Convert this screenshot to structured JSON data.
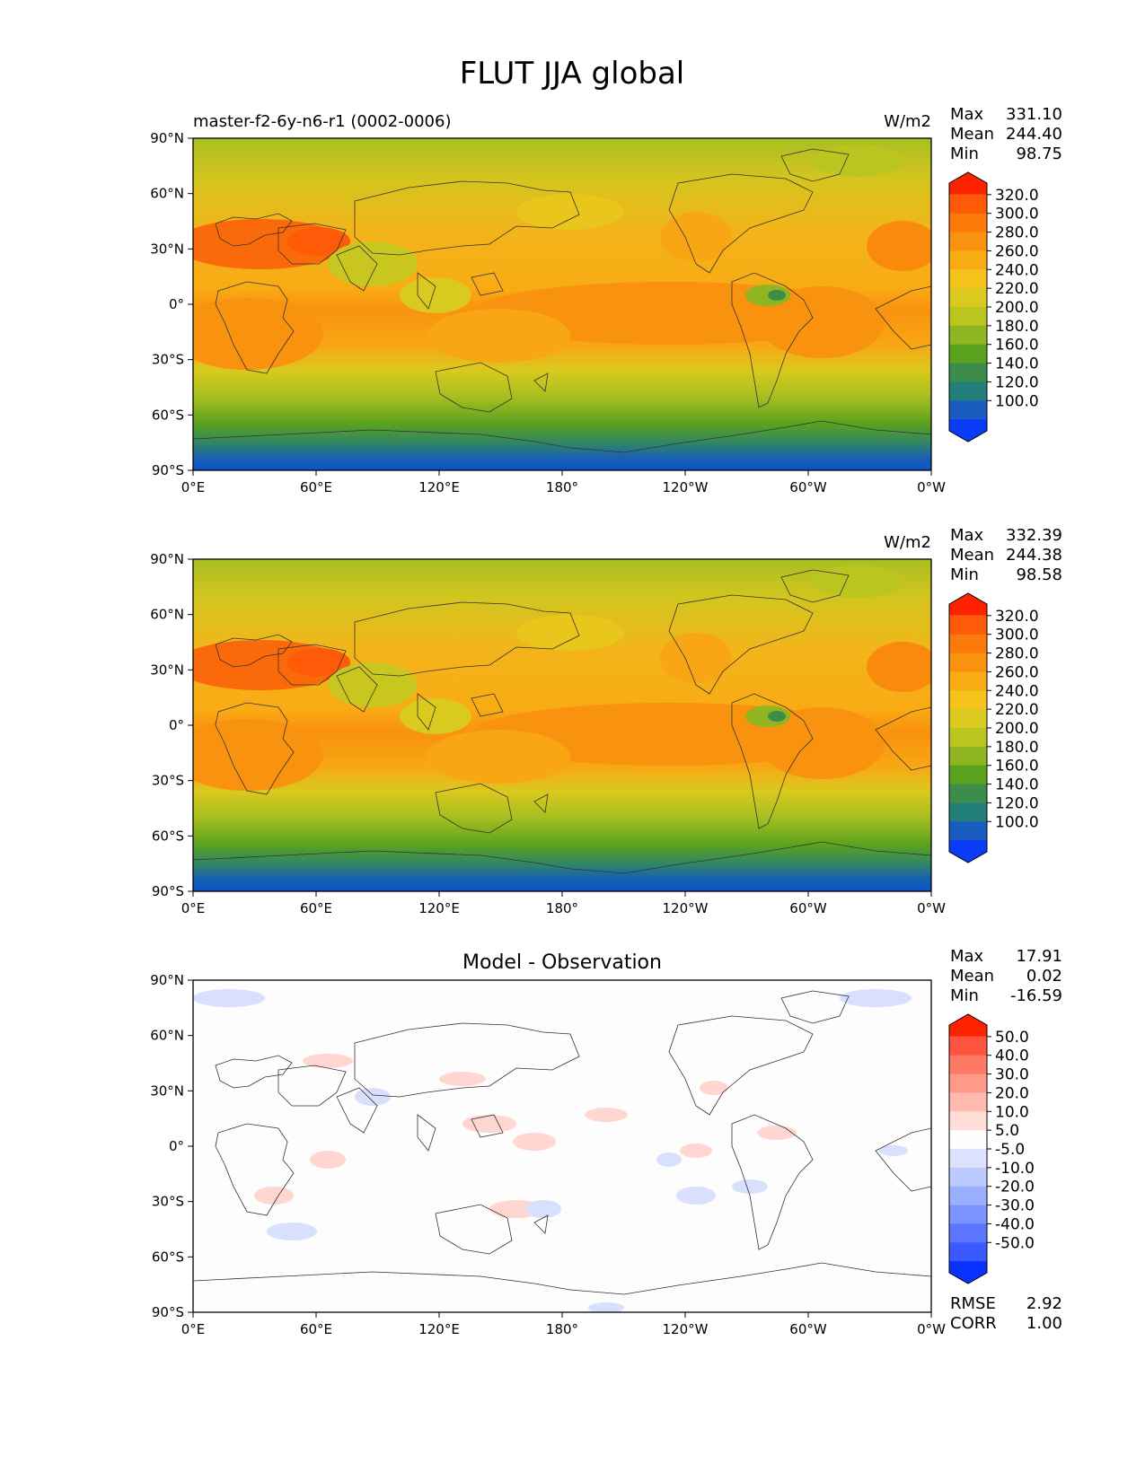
{
  "figure": {
    "title": "FLUT JJA global"
  },
  "panels": [
    {
      "kind": "test",
      "subtitle_left": "master-f2-6y-n6-r1 (0002-0006)",
      "subtitle_center": "",
      "units": "W/m2",
      "stats": [
        {
          "label": "Max",
          "value": "331.10"
        },
        {
          "label": "Mean",
          "value": "244.40"
        },
        {
          "label": "Min",
          "value": "98.75"
        }
      ],
      "extra_stats": []
    },
    {
      "kind": "reference",
      "subtitle_left": "",
      "subtitle_center": "",
      "units": "W/m2",
      "stats": [
        {
          "label": "Max",
          "value": "332.39"
        },
        {
          "label": "Mean",
          "value": "244.38"
        },
        {
          "label": "Min",
          "value": "98.58"
        }
      ],
      "extra_stats": []
    },
    {
      "kind": "difference",
      "subtitle_left": "",
      "subtitle_center": "Model - Observation",
      "units": "",
      "stats": [
        {
          "label": "Max",
          "value": "17.91"
        },
        {
          "label": "Mean",
          "value": "0.02"
        },
        {
          "label": "Min",
          "value": "-16.59"
        }
      ],
      "extra_stats": [
        {
          "label": "RMSE",
          "value": "2.92"
        },
        {
          "label": "CORR",
          "value": "1.00"
        }
      ]
    }
  ],
  "axes": {
    "lat_ticks": [
      "90°N",
      "60°N",
      "30°N",
      "0°",
      "30°S",
      "60°S",
      "90°S"
    ],
    "lon_ticks": [
      "0°E",
      "60°E",
      "120°E",
      "180°",
      "120°W",
      "60°W",
      "0°W"
    ]
  },
  "colorbars": {
    "field": {
      "labels": [
        "320.0",
        "300.0",
        "280.0",
        "260.0",
        "240.0",
        "220.0",
        "200.0",
        "180.0",
        "160.0",
        "140.0",
        "120.0",
        "100.0"
      ],
      "colors": [
        "#ff2200",
        "#ff5a08",
        "#fb7a0a",
        "#f9920f",
        "#f9ab14",
        "#f5c31b",
        "#dac91e",
        "#bbc520",
        "#8fb520",
        "#5aa21e",
        "#3c8c4a",
        "#237f7a",
        "#1a5cc0",
        "#0a3cf8"
      ]
    },
    "difference": {
      "labels": [
        "50.0",
        "40.0",
        "30.0",
        "20.0",
        "10.0",
        "5.0",
        "-5.0",
        "-10.0",
        "-20.0",
        "-30.0",
        "-40.0",
        "-50.0"
      ],
      "colors": [
        "#ff2200",
        "#ff5540",
        "#ff7a66",
        "#ff9a88",
        "#ffbab0",
        "#ffdcd6",
        "#fefefe",
        "#dde3fe",
        "#bccbfe",
        "#9aaffe",
        "#7b93fe",
        "#5a76fe",
        "#3a59fe",
        "#0a30fe"
      ]
    }
  }
}
